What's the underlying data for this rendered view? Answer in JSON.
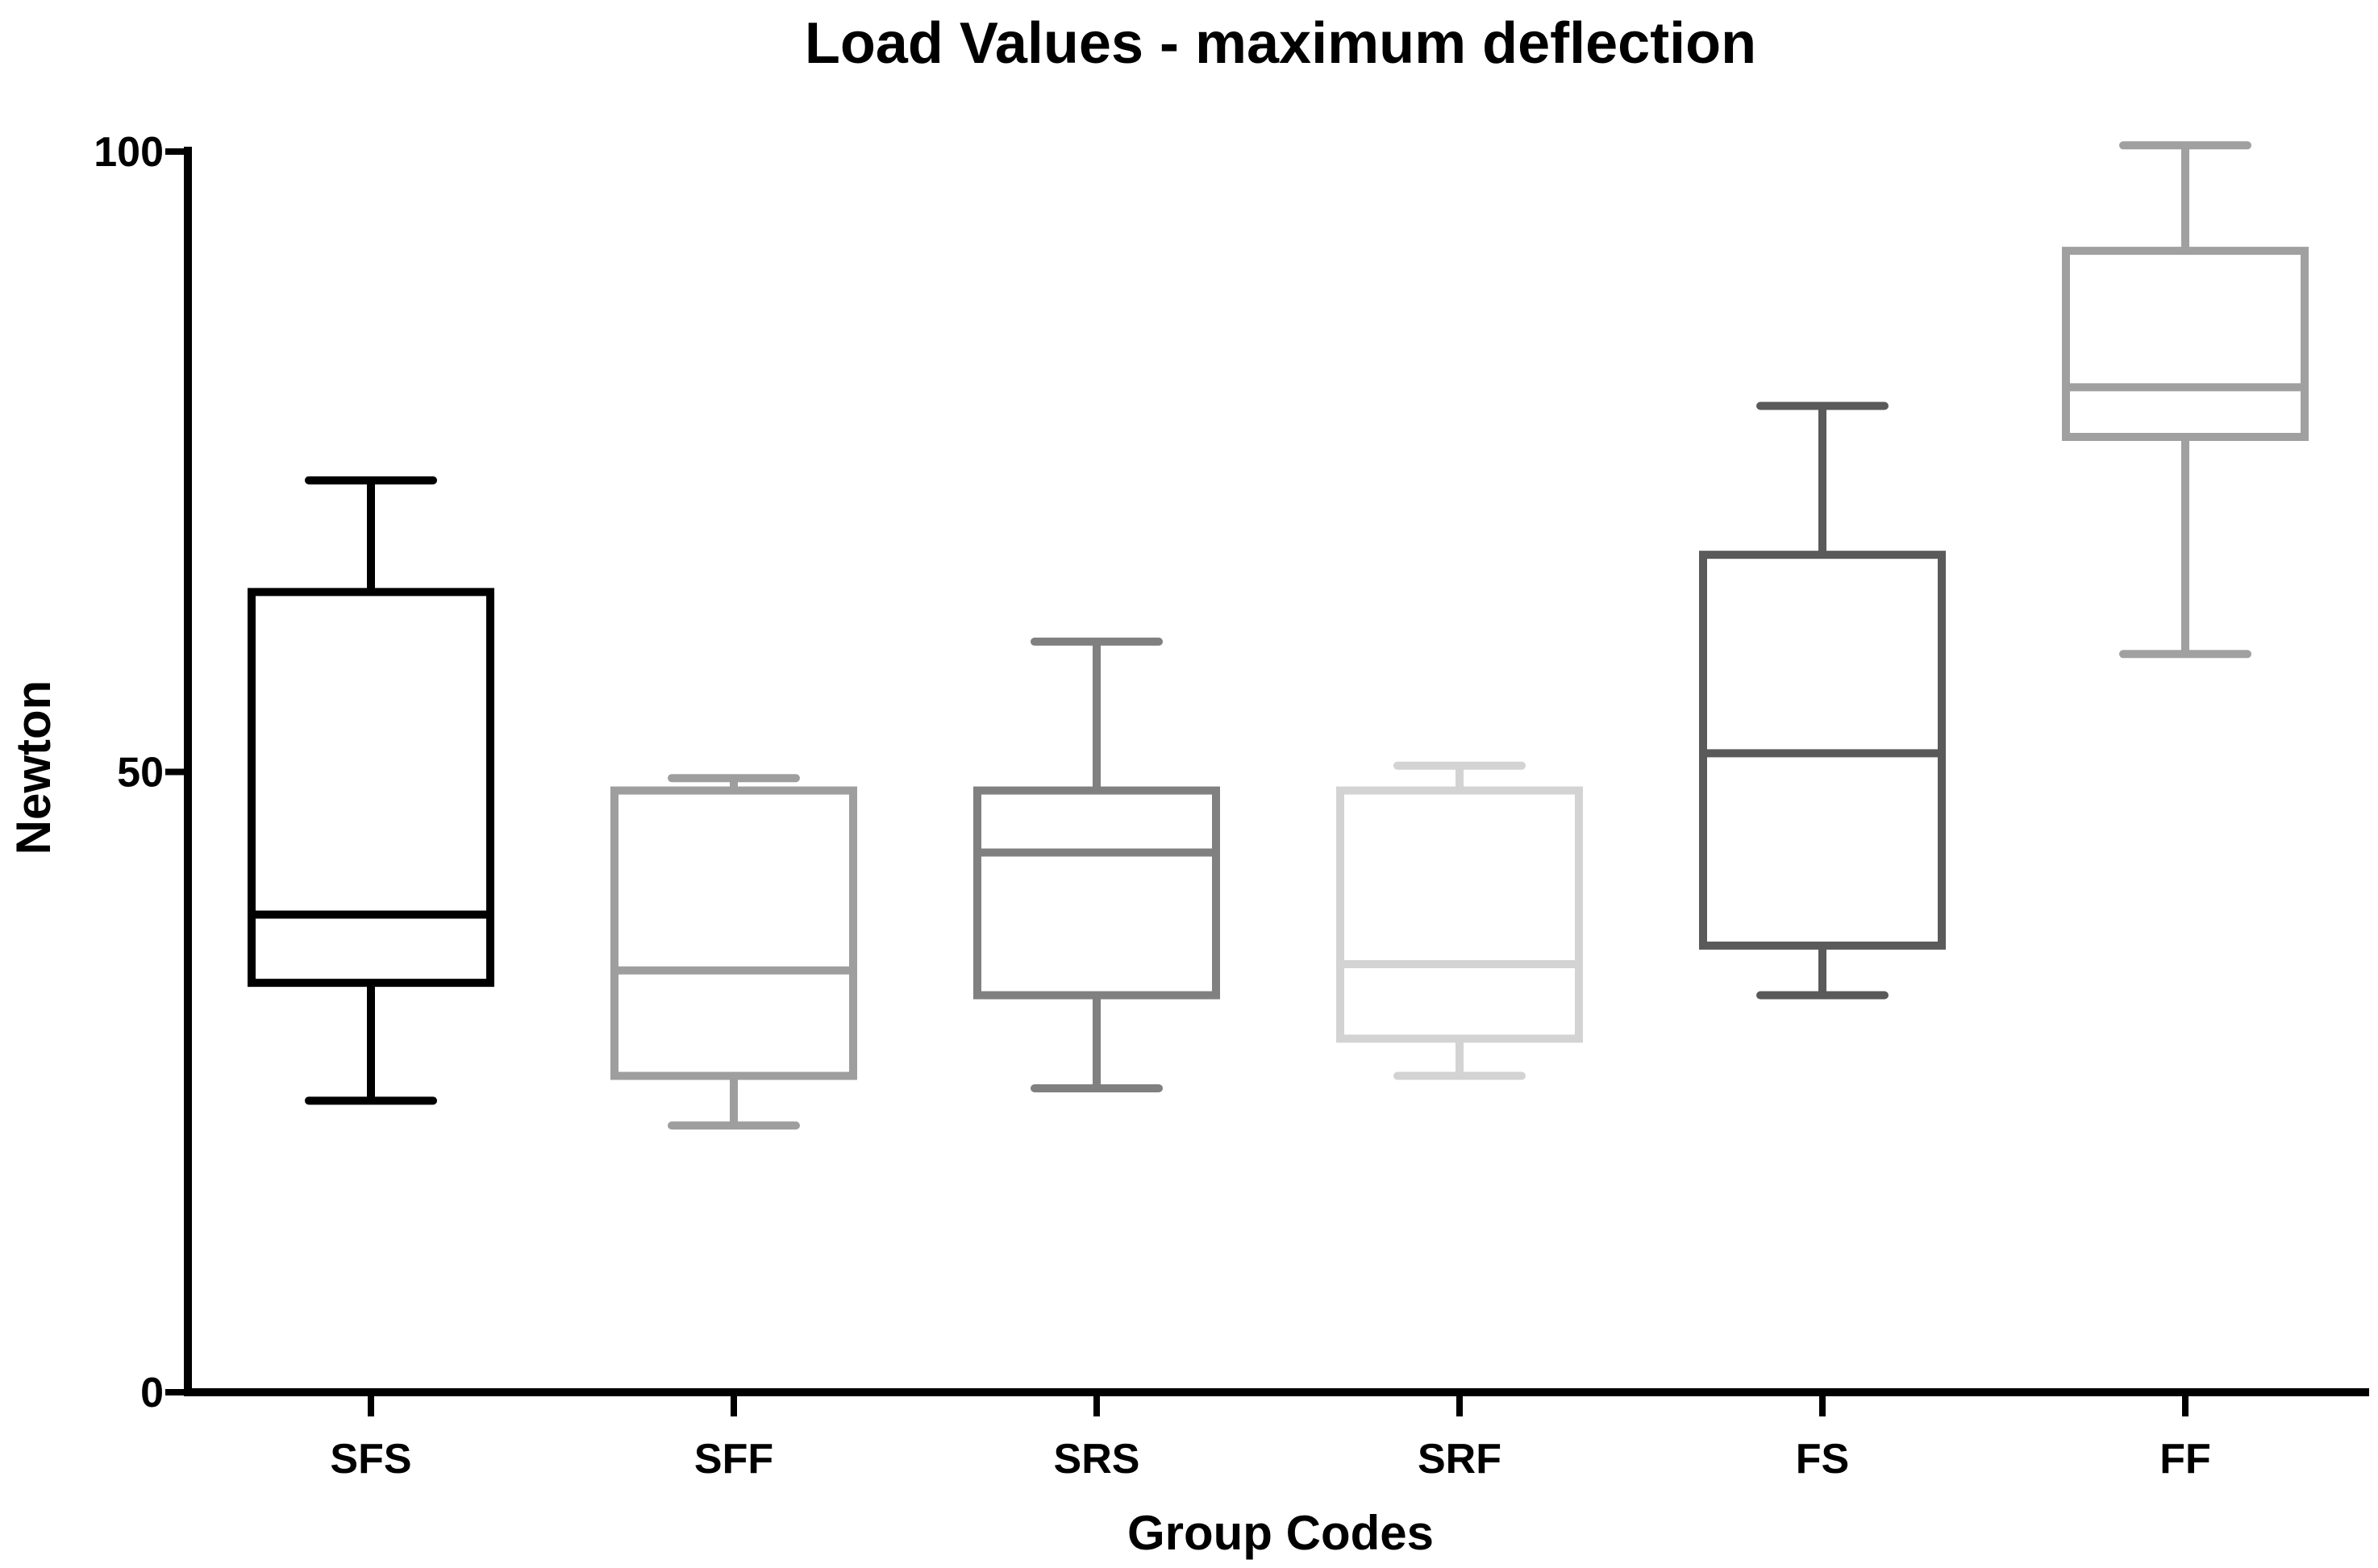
{
  "chart_data": {
    "type": "boxplot",
    "title": "Load Values - maximum deflection",
    "xlabel": "Group Codes",
    "ylabel": "Newton",
    "ylim": [
      0,
      100
    ],
    "y_ticks": [
      0,
      50,
      100
    ],
    "grid": false,
    "legend": "none",
    "categories": [
      "SFS",
      "SFF",
      "SRS",
      "SRF",
      "FS",
      "FF"
    ],
    "boxes": [
      {
        "category": "SFS",
        "min": 23.5,
        "q1": 33.0,
        "median": 38.5,
        "q3": 64.5,
        "max": 73.5,
        "color": "#000000"
      },
      {
        "category": "SFF",
        "min": 21.5,
        "q1": 25.5,
        "median": 34.0,
        "q3": 48.5,
        "max": 49.5,
        "color": "#9e9e9e"
      },
      {
        "category": "SRS",
        "min": 24.5,
        "q1": 32.0,
        "median": 43.5,
        "q3": 48.5,
        "max": 60.5,
        "color": "#808080"
      },
      {
        "category": "SRF",
        "min": 25.5,
        "q1": 28.5,
        "median": 34.5,
        "q3": 48.5,
        "max": 50.5,
        "color": "#d3d3d3"
      },
      {
        "category": "FS",
        "min": 32.0,
        "q1": 36.0,
        "median": 51.5,
        "q3": 67.5,
        "max": 79.5,
        "color": "#5a5a5a"
      },
      {
        "category": "FF",
        "min": 59.5,
        "q1": 77.0,
        "median": 81.0,
        "q3": 92.0,
        "max": 100.5,
        "color": "#a0a0a0"
      }
    ]
  }
}
